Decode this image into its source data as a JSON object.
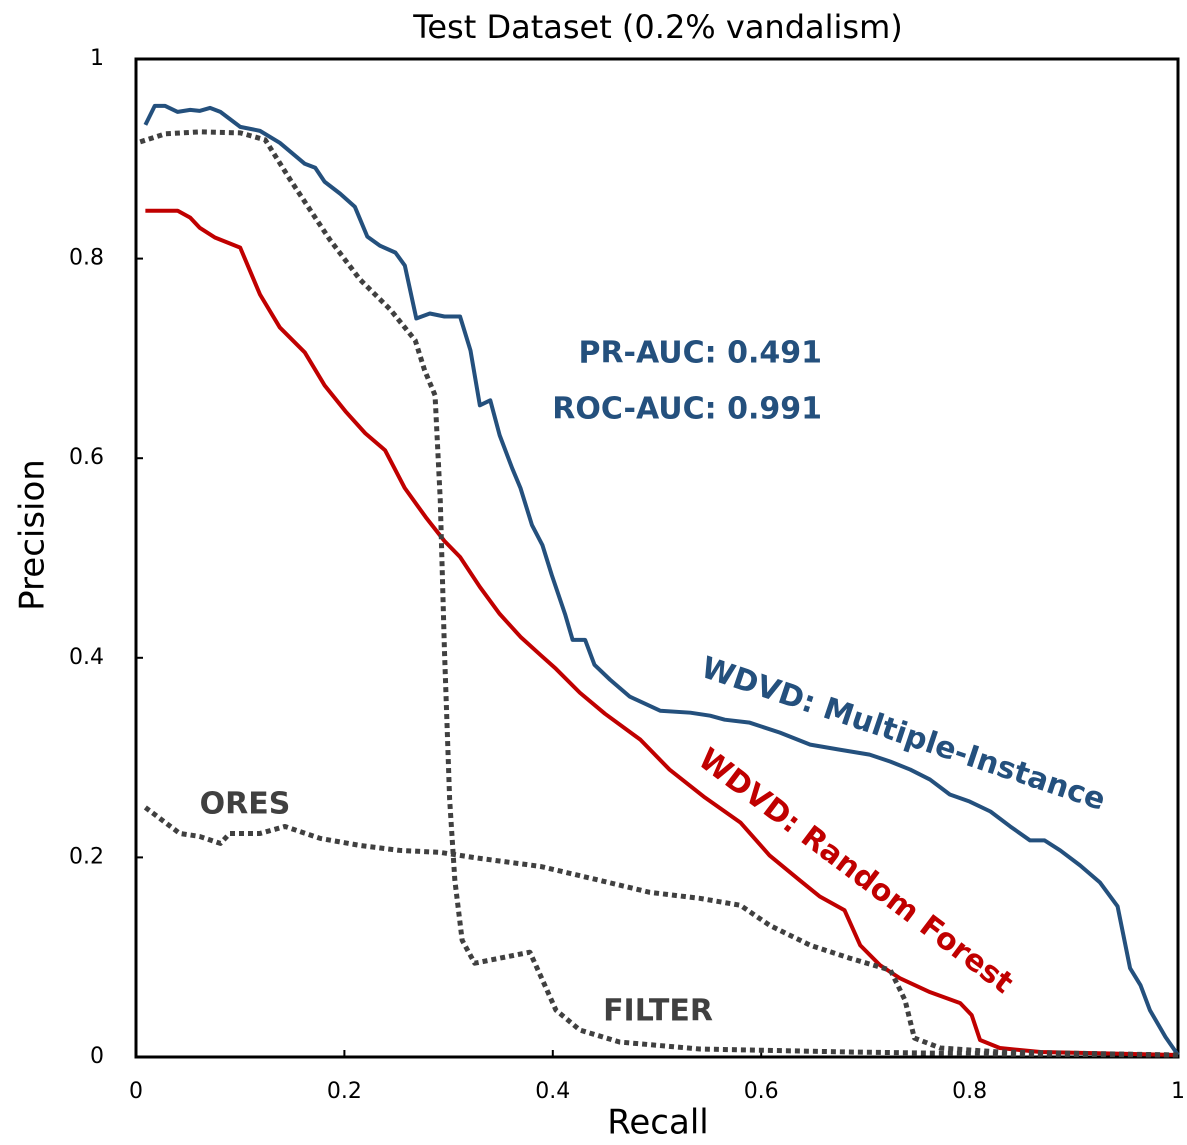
{
  "chart_data": {
    "type": "line",
    "title": "Test Dataset (0.2% vandalism)",
    "x_label": "Recall",
    "y_label": "Precision",
    "xlim": [
      0,
      1
    ],
    "ylim": [
      0,
      1
    ],
    "xticks": [
      0,
      0.2,
      0.4,
      0.6,
      0.8,
      1
    ],
    "yticks": [
      0,
      0.2,
      0.4,
      0.6,
      0.8,
      1
    ],
    "annotations": [
      "PR-AUC: 0.491",
      "ROC-AUC: 0.991"
    ],
    "series": [
      {
        "name": "WDVD: Multiple-Instance",
        "color": "#24507d",
        "style": "solid",
        "x": [
          0.009,
          0.018,
          0.028,
          0.04,
          0.052,
          0.061,
          0.071,
          0.081,
          0.1,
          0.119,
          0.138,
          0.162,
          0.172,
          0.181,
          0.196,
          0.21,
          0.222,
          0.234,
          0.249,
          0.258,
          0.269,
          0.282,
          0.296,
          0.311,
          0.321,
          0.33,
          0.34,
          0.349,
          0.361,
          0.369,
          0.38,
          0.39,
          0.399,
          0.412,
          0.419,
          0.431,
          0.44,
          0.455,
          0.474,
          0.503,
          0.532,
          0.551,
          0.565,
          0.589,
          0.618,
          0.647,
          0.675,
          0.704,
          0.724,
          0.743,
          0.762,
          0.781,
          0.8,
          0.82,
          0.839,
          0.858,
          0.872,
          0.887,
          0.906,
          0.925,
          0.942,
          0.954,
          0.964,
          0.973,
          0.988,
          1.0
        ],
        "values": [
          0.934,
          0.953,
          0.953,
          0.947,
          0.949,
          0.948,
          0.951,
          0.947,
          0.932,
          0.928,
          0.916,
          0.895,
          0.891,
          0.877,
          0.865,
          0.852,
          0.822,
          0.813,
          0.806,
          0.793,
          0.74,
          0.745,
          0.742,
          0.742,
          0.708,
          0.653,
          0.658,
          0.623,
          0.59,
          0.57,
          0.533,
          0.513,
          0.483,
          0.443,
          0.418,
          0.418,
          0.393,
          0.378,
          0.361,
          0.347,
          0.345,
          0.342,
          0.338,
          0.335,
          0.325,
          0.313,
          0.308,
          0.303,
          0.296,
          0.288,
          0.278,
          0.263,
          0.256,
          0.246,
          0.231,
          0.217,
          0.217,
          0.207,
          0.192,
          0.175,
          0.151,
          0.089,
          0.072,
          0.047,
          0.02,
          0.002
        ]
      },
      {
        "name": "WDVD: Random Forest",
        "color": "#c00000",
        "style": "solid",
        "x": [
          0.009,
          0.04,
          0.052,
          0.061,
          0.076,
          0.1,
          0.119,
          0.138,
          0.162,
          0.181,
          0.201,
          0.22,
          0.239,
          0.258,
          0.278,
          0.296,
          0.311,
          0.33,
          0.349,
          0.369,
          0.388,
          0.403,
          0.426,
          0.45,
          0.484,
          0.512,
          0.546,
          0.58,
          0.608,
          0.637,
          0.656,
          0.68,
          0.695,
          0.714,
          0.733,
          0.762,
          0.791,
          0.802,
          0.81,
          0.829,
          0.868,
          1.0
        ],
        "values": [
          0.848,
          0.848,
          0.841,
          0.831,
          0.821,
          0.811,
          0.764,
          0.731,
          0.706,
          0.673,
          0.647,
          0.625,
          0.608,
          0.57,
          0.541,
          0.517,
          0.501,
          0.471,
          0.444,
          0.421,
          0.403,
          0.389,
          0.365,
          0.344,
          0.318,
          0.288,
          0.26,
          0.235,
          0.202,
          0.177,
          0.161,
          0.147,
          0.112,
          0.092,
          0.079,
          0.065,
          0.054,
          0.042,
          0.017,
          0.009,
          0.005,
          0.002
        ]
      },
      {
        "name": "ORES",
        "color": "#404040",
        "style": "dotted",
        "x": [
          0.009,
          0.023,
          0.042,
          0.061,
          0.081,
          0.09,
          0.119,
          0.143,
          0.177,
          0.215,
          0.253,
          0.292,
          0.33,
          0.388,
          0.445,
          0.493,
          0.541,
          0.58,
          0.608,
          0.647,
          0.685,
          0.724,
          0.738,
          0.747,
          0.772,
          0.829,
          1.0
        ],
        "values": [
          0.25,
          0.239,
          0.224,
          0.221,
          0.214,
          0.224,
          0.224,
          0.231,
          0.219,
          0.212,
          0.207,
          0.205,
          0.199,
          0.191,
          0.177,
          0.165,
          0.159,
          0.152,
          0.132,
          0.112,
          0.099,
          0.087,
          0.057,
          0.019,
          0.009,
          0.005,
          0.002
        ]
      },
      {
        "name": "FILTER",
        "color": "#404040",
        "style": "dotted",
        "x": [
          0.004,
          0.028,
          0.061,
          0.1,
          0.124,
          0.148,
          0.167,
          0.186,
          0.215,
          0.244,
          0.268,
          0.277,
          0.287,
          0.292,
          0.296,
          0.301,
          0.306,
          0.313,
          0.325,
          0.349,
          0.378,
          0.388,
          0.403,
          0.426,
          0.464,
          0.541,
          0.685,
          0.829,
          1.0
        ],
        "values": [
          0.917,
          0.925,
          0.927,
          0.926,
          0.919,
          0.879,
          0.849,
          0.819,
          0.779,
          0.749,
          0.718,
          0.688,
          0.663,
          0.558,
          0.408,
          0.258,
          0.177,
          0.117,
          0.094,
          0.099,
          0.105,
          0.082,
          0.047,
          0.027,
          0.015,
          0.008,
          0.005,
          0.003,
          0.002
        ]
      }
    ]
  }
}
